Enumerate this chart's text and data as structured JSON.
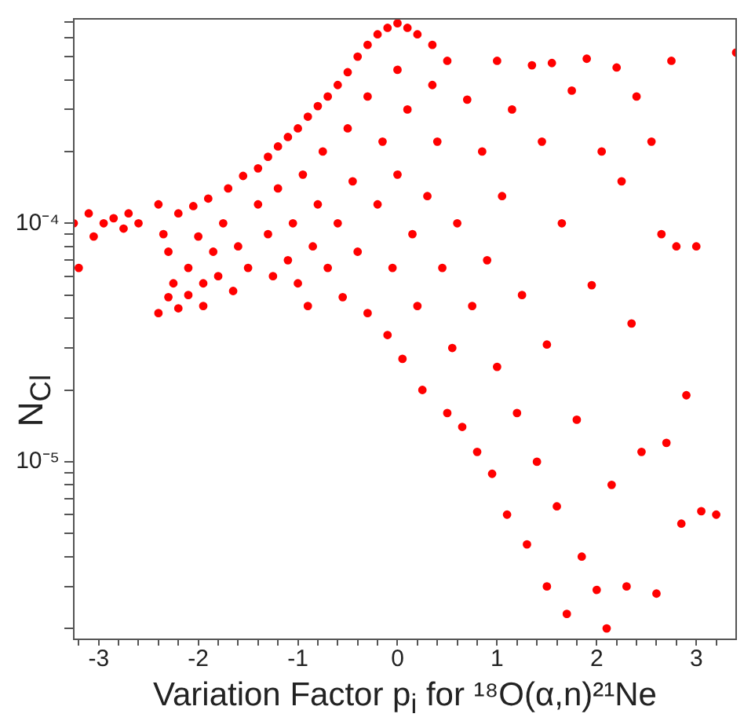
{
  "chart_data": {
    "type": "scatter",
    "xlabel": "Variation Factor p$_{i}$ for ¹⁸O(α,n)²¹Ne",
    "ylabel": "N$_{Cl}$",
    "log": "y",
    "grid": false,
    "legend": false,
    "marker": "circle",
    "xlim": [
      -3.25,
      3.4
    ],
    "ylim": [
      1.8e-06,
      0.00072
    ],
    "xticks": [
      {
        "value": -3.2,
        "label": null
      },
      -3,
      {
        "value": -2.8,
        "label": null
      },
      {
        "value": -2.6,
        "label": null
      },
      {
        "value": -2.4,
        "label": null
      },
      {
        "value": -2.2,
        "label": null
      },
      -2,
      {
        "value": -1.8,
        "label": null
      },
      {
        "value": -1.6,
        "label": null
      },
      {
        "value": -1.4,
        "label": null
      },
      {
        "value": -1.2,
        "label": null
      },
      -1,
      {
        "value": -0.8,
        "label": null
      },
      {
        "value": -0.6,
        "label": null
      },
      {
        "value": -0.4,
        "label": null
      },
      {
        "value": -0.2,
        "label": null
      },
      0,
      {
        "value": 0.2,
        "label": null
      },
      {
        "value": 0.4,
        "label": null
      },
      {
        "value": 0.6,
        "label": null
      },
      {
        "value": 0.8,
        "label": null
      },
      1,
      {
        "value": 1.2,
        "label": null
      },
      {
        "value": 1.4,
        "label": null
      },
      {
        "value": 1.6,
        "label": null
      },
      {
        "value": 1.8,
        "label": null
      },
      2,
      {
        "value": 2.2,
        "label": null
      },
      {
        "value": 2.4,
        "label": null
      },
      {
        "value": 2.6,
        "label": null
      },
      {
        "value": 2.8,
        "label": null
      },
      3,
      {
        "value": 3.2,
        "label": null
      }
    ],
    "yticks": [
      {
        "value": 2e-06,
        "label": null
      },
      {
        "value": 3e-06,
        "label": null
      },
      {
        "value": 4e-06,
        "label": null
      },
      {
        "value": 5e-06,
        "label": null
      },
      {
        "value": 6e-06,
        "label": null
      },
      {
        "value": 7e-06,
        "label": null
      },
      {
        "value": 8e-06,
        "label": null
      },
      {
        "value": 9e-06,
        "label": null
      },
      {
        "value": 1e-05,
        "label": "10⁻⁵"
      },
      {
        "value": 2e-05,
        "label": null
      },
      {
        "value": 3e-05,
        "label": null
      },
      {
        "value": 4e-05,
        "label": null
      },
      {
        "value": 5e-05,
        "label": null
      },
      {
        "value": 6e-05,
        "label": null
      },
      {
        "value": 7e-05,
        "label": null
      },
      {
        "value": 8e-05,
        "label": null
      },
      {
        "value": 9e-05,
        "label": null
      },
      {
        "value": 0.0001,
        "label": "10⁻⁴"
      },
      {
        "value": 0.0002,
        "label": null
      },
      {
        "value": 0.0003,
        "label": null
      },
      {
        "value": 0.0004,
        "label": null
      },
      {
        "value": 0.0005,
        "label": null
      },
      {
        "value": 0.0006,
        "label": null
      },
      {
        "value": 0.0007,
        "label": null
      }
    ],
    "series": [
      {
        "color": "#ff0000",
        "x": [
          -3.25,
          -3.2,
          -3.1,
          -3.05,
          -2.95,
          -2.85,
          -2.7,
          -2.6,
          -2.75,
          -2.4,
          -2.35,
          -2.3,
          -2.25,
          -2.2,
          -2.1,
          -2.05,
          -2,
          -1.95,
          -1.9,
          -1.85,
          -1.8,
          -1.75,
          -1.7,
          -1.65,
          -1.6,
          -1.55,
          -1.5,
          -2.3,
          -2.1,
          -2.4,
          -2.2,
          -1.95,
          -1.4,
          -1.3,
          -1.2,
          -1.1,
          -1.0,
          -0.9,
          -0.8,
          -0.7,
          -0.6,
          -0.5,
          -0.4,
          -0.3,
          -0.2,
          -0.1,
          0,
          0.1,
          0.2,
          0.35,
          -1.4,
          -1.3,
          -1.25,
          -1.2,
          -1.1,
          -1.05,
          -1.0,
          -0.95,
          -0.9,
          -0.85,
          -0.8,
          -0.75,
          -0.7,
          -0.6,
          -0.55,
          -0.5,
          -0.45,
          -0.4,
          -0.3,
          -0.3,
          -0.2,
          -0.15,
          -0.1,
          -0.05,
          0,
          0,
          0.05,
          0.1,
          0.15,
          0.2,
          0.25,
          0.3,
          0.35,
          0.4,
          0.45,
          0.5,
          0.5,
          0.55,
          0.6,
          0.65,
          0.7,
          0.75,
          0.8,
          0.85,
          0.9,
          0.95,
          1.0,
          1.0,
          1.05,
          1.1,
          1.15,
          1.2,
          1.25,
          1.3,
          1.35,
          1.4,
          1.45,
          1.5,
          1.5,
          1.55,
          1.6,
          1.65,
          1.7,
          1.75,
          1.8,
          1.85,
          1.9,
          1.95,
          2.0,
          2.05,
          2.1,
          2.15,
          2.2,
          2.25,
          2.3,
          2.35,
          2.4,
          2.45,
          2.55,
          2.6,
          2.65,
          2.7,
          2.75,
          2.8,
          2.85,
          2.9,
          3.0,
          3.05,
          3.2,
          3.4
        ],
        "values": [
          0.0001,
          6.5e-05,
          0.00011,
          8.8e-05,
          0.0001,
          0.000105,
          0.00011,
          0.0001,
          9.5e-05,
          0.00012,
          9e-05,
          7.6e-05,
          5.6e-05,
          0.00011,
          6.5e-05,
          0.000118,
          8.8e-05,
          5.6e-05,
          0.000127,
          7.6e-05,
          6e-05,
          0.0001,
          0.00014,
          5.2e-05,
          8e-05,
          0.000158,
          6.5e-05,
          4.9e-05,
          5e-05,
          4.2e-05,
          4.4e-05,
          4.5e-05,
          0.00017,
          0.00019,
          0.00021,
          0.00023,
          0.00025,
          0.00028,
          0.00031,
          0.00034,
          0.00038,
          0.00043,
          0.0005,
          0.00056,
          0.00062,
          0.00066,
          0.00069,
          0.00066,
          0.00062,
          0.00056,
          0.00012,
          9e-05,
          6e-05,
          0.00014,
          7e-05,
          0.0001,
          5.6e-05,
          0.00016,
          4.5e-05,
          8e-05,
          0.00012,
          0.0002,
          6.5e-05,
          0.0001,
          4.9e-05,
          0.00025,
          0.00015,
          7.6e-05,
          0.00034,
          4.2e-05,
          0.00012,
          0.00022,
          3.4e-05,
          6.5e-05,
          0.00044,
          0.00016,
          2.7e-05,
          0.0003,
          9e-05,
          4.5e-05,
          2e-05,
          0.00013,
          0.00038,
          0.00022,
          6.5e-05,
          1.6e-05,
          0.00048,
          3e-05,
          0.0001,
          1.4e-05,
          0.00033,
          4.5e-05,
          1.1e-05,
          0.0002,
          7e-05,
          8.9e-06,
          0.00048,
          2.5e-05,
          0.00013,
          6e-06,
          0.0003,
          1.6e-05,
          5e-05,
          4.5e-06,
          0.00046,
          1e-05,
          0.00022,
          3e-06,
          3.1e-05,
          0.00047,
          6.5e-06,
          0.0001,
          2.3e-06,
          0.00036,
          1.5e-05,
          4e-06,
          0.00049,
          5.5e-05,
          2.9e-06,
          0.0002,
          2e-06,
          8e-06,
          0.00045,
          0.00015,
          3e-06,
          3.8e-05,
          0.00034,
          1.1e-05,
          0.00022,
          2.8e-06,
          9e-05,
          1.2e-05,
          0.00048,
          8e-05,
          5.5e-06,
          1.9e-05,
          8e-05,
          6.2e-06,
          6e-06,
          0.00052
        ]
      }
    ]
  }
}
